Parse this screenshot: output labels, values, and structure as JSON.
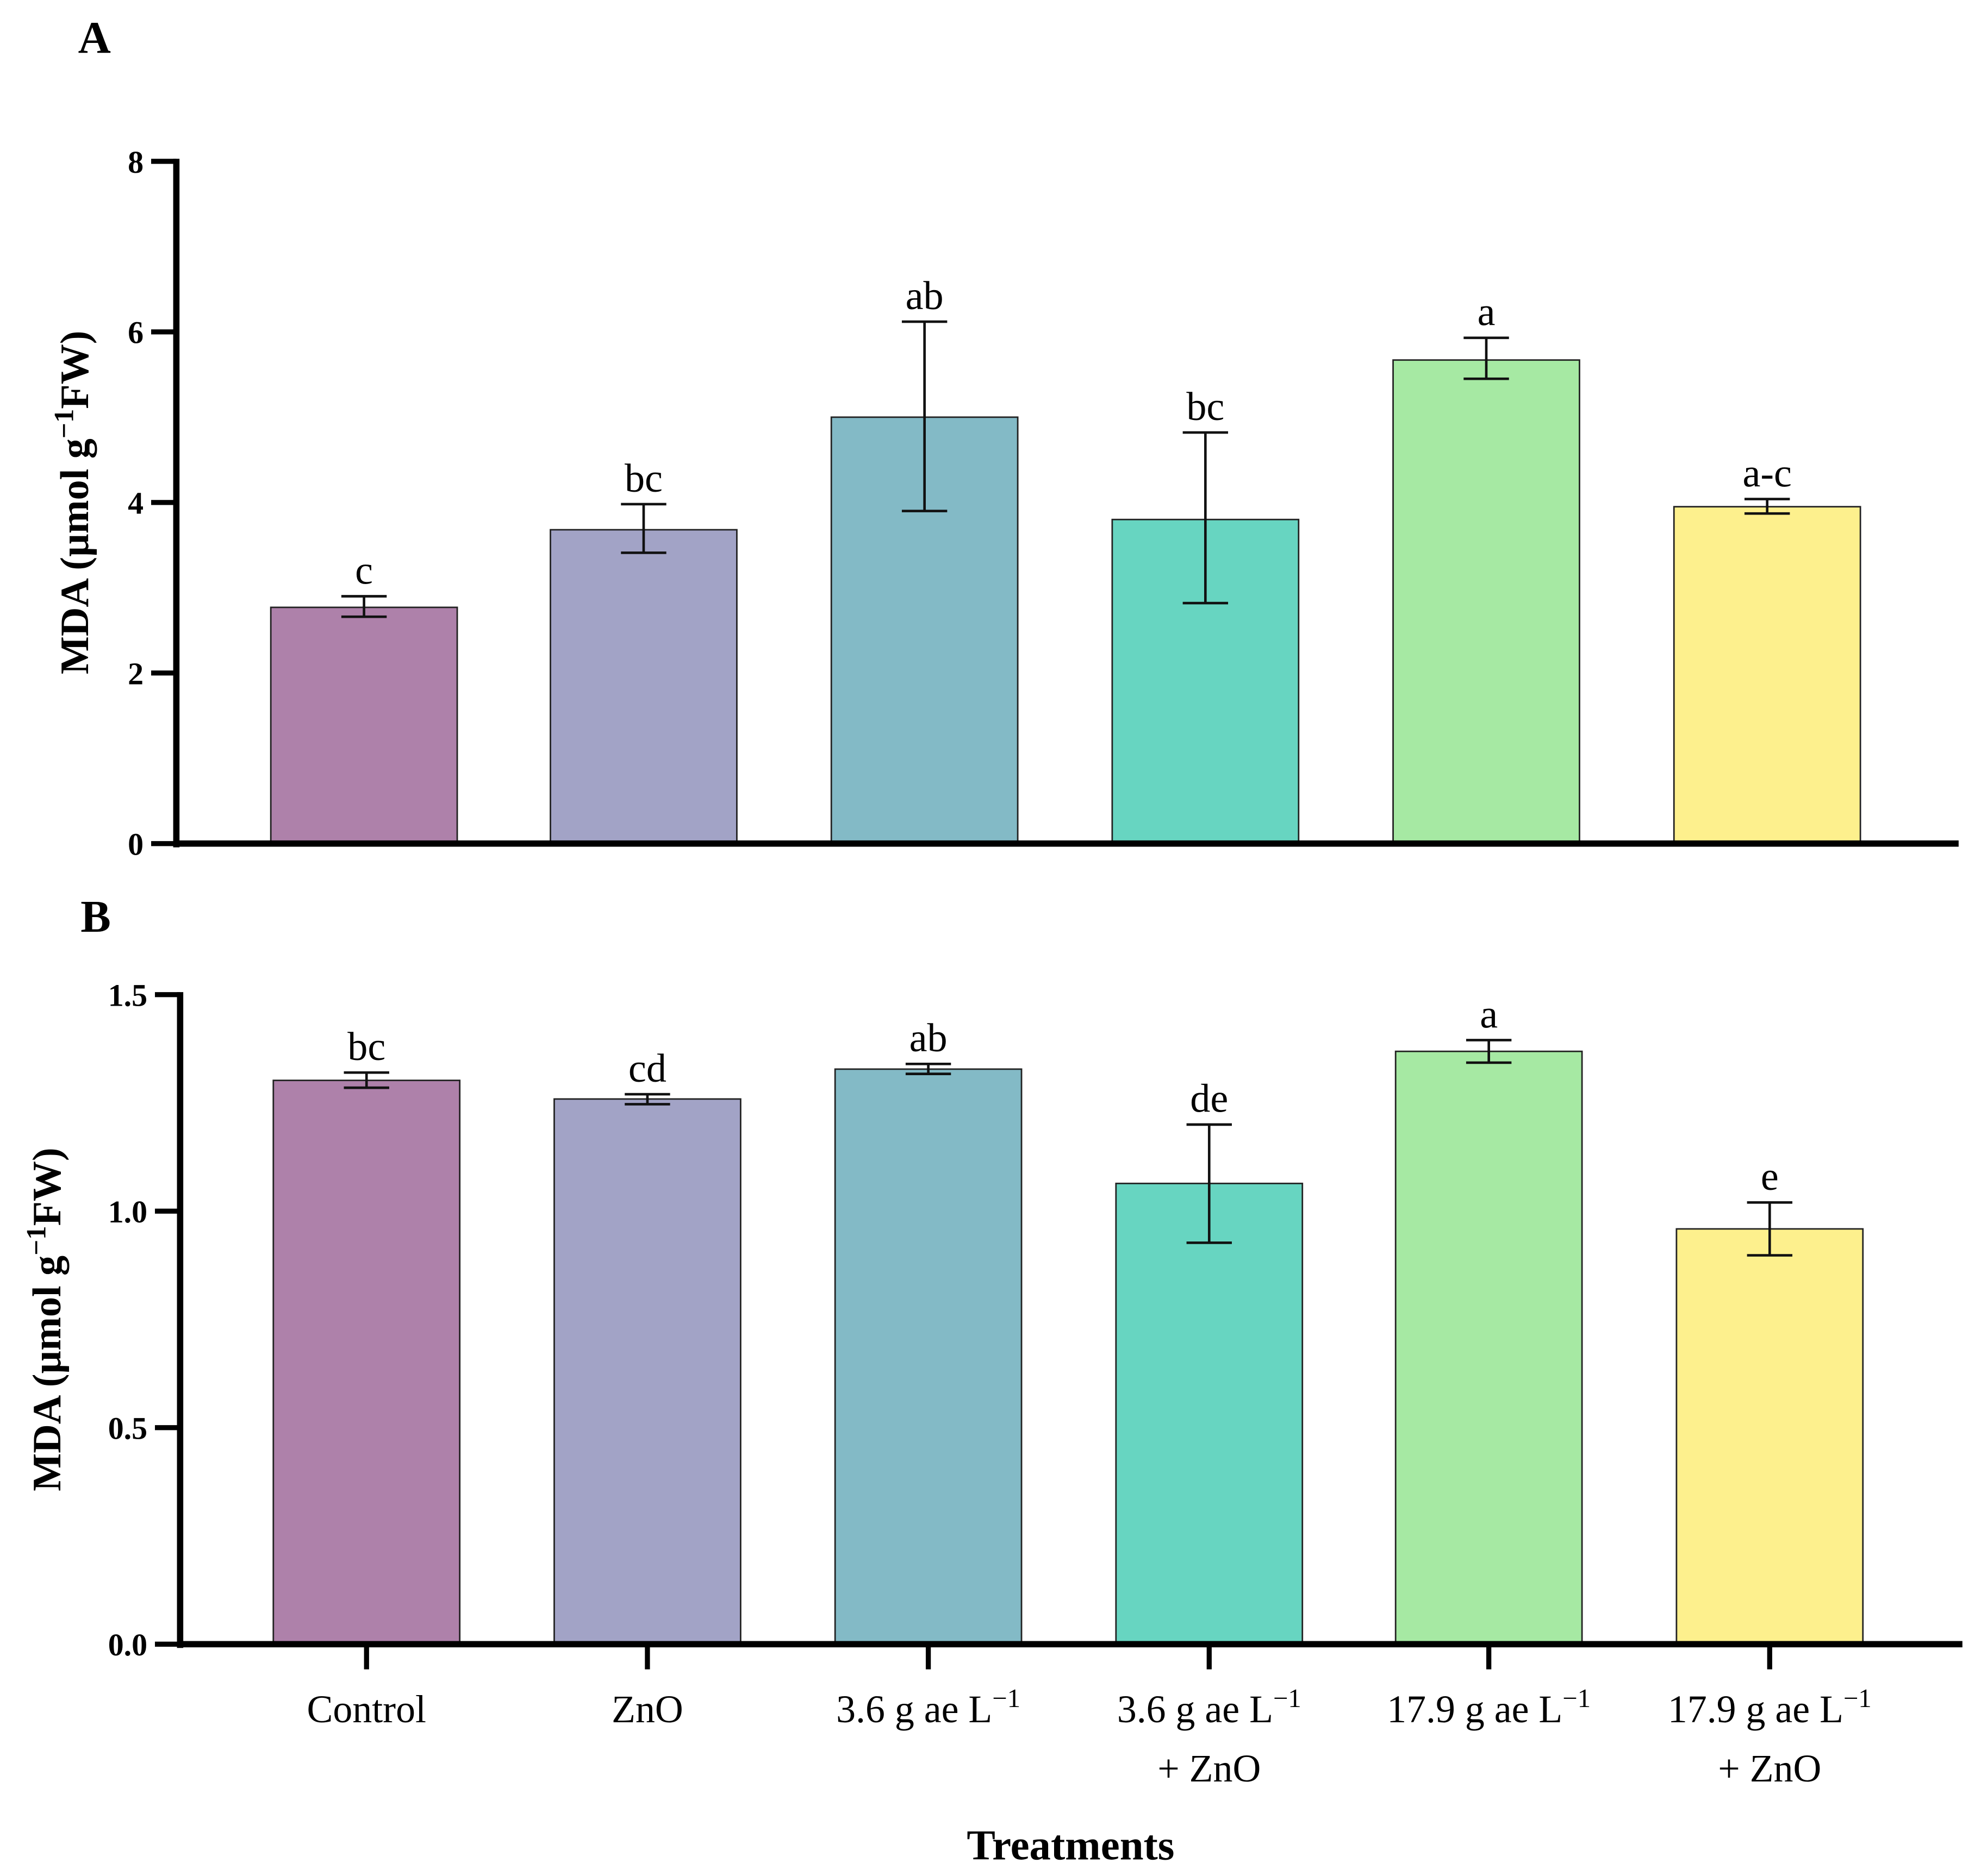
{
  "chart_data": [
    {
      "panel": "A",
      "type": "bar",
      "ylabel": {
        "main": "MDA (µmol g",
        "sup": "−1",
        "tail": "FW)"
      },
      "ylim": [
        0,
        8
      ],
      "yticks": [
        "0",
        "2",
        "4",
        "6",
        "8"
      ],
      "ytick_values": [
        0,
        2,
        4,
        6,
        8
      ],
      "values": [
        2.77,
        3.68,
        5.0,
        3.8,
        5.67,
        3.95
      ],
      "err_high": [
        2.9,
        3.98,
        6.12,
        4.82,
        5.93,
        4.04
      ],
      "err_low": [
        2.66,
        3.41,
        3.9,
        2.82,
        5.45,
        3.87
      ],
      "letters": [
        "c",
        "bc",
        "ab",
        "bc",
        "a",
        "a-c"
      ]
    },
    {
      "panel": "B",
      "type": "bar",
      "ylabel": {
        "main": "MDA (µmol g",
        "sup": "−1",
        "tail": "FW)"
      },
      "ylim": [
        0,
        1.5
      ],
      "yticks": [
        "0.0",
        "0.5",
        "1.0",
        "1.5"
      ],
      "ytick_values": [
        0,
        0.5,
        1.0,
        1.5
      ],
      "values": [
        1.302,
        1.259,
        1.328,
        1.064,
        1.369,
        0.959
      ],
      "err_high": [
        1.32,
        1.27,
        1.34,
        1.2,
        1.395,
        1.02
      ],
      "err_low": [
        1.285,
        1.247,
        1.317,
        0.927,
        1.343,
        0.898
      ],
      "letters": [
        "bc",
        "cd",
        "ab",
        "de",
        "a",
        "e"
      ]
    }
  ],
  "categories": [
    {
      "main": "Control",
      "sup": "",
      "line2": ""
    },
    {
      "main": "ZnO",
      "sup": "",
      "line2": ""
    },
    {
      "main": "3.6 g ae L",
      "sup": "−1",
      "line2": ""
    },
    {
      "main": "3.6 g ae L",
      "sup": "−1",
      "line2": "+ ZnO"
    },
    {
      "main": "17.9 g ae L",
      "sup": "−1",
      "line2": ""
    },
    {
      "main": "17.9 g ae L",
      "sup": "−1",
      "line2": "+ ZnO"
    }
  ],
  "colors": [
    "#ae81aa",
    "#a2a3c6",
    "#83bac6",
    "#67d5c1",
    "#a6e9a3",
    "#fdf08d"
  ],
  "xlabel": "Treatments"
}
